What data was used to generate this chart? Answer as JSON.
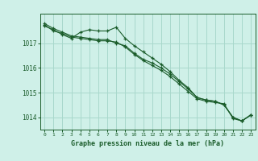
{
  "title": "Graphe pression niveau de la mer (hPa)",
  "bg_color": "#cff0e8",
  "grid_color": "#a8d8cc",
  "line_color": "#1a5c2a",
  "hours": [
    0,
    1,
    2,
    3,
    4,
    5,
    6,
    7,
    8,
    9,
    10,
    11,
    12,
    13,
    14,
    15,
    16,
    17,
    18,
    19,
    20,
    21,
    22,
    23
  ],
  "series1": [
    1017.7,
    1017.55,
    1017.35,
    1017.2,
    1017.45,
    1017.55,
    1017.5,
    1017.5,
    1017.65,
    1017.2,
    1016.9,
    1016.65,
    1016.4,
    1016.15,
    1015.85,
    1015.5,
    1015.2,
    1014.8,
    1014.7,
    1014.65,
    1014.5,
    1014.0,
    1013.85,
    1014.1
  ],
  "series2": [
    1017.75,
    1017.5,
    1017.4,
    1017.25,
    1017.2,
    1017.15,
    1017.1,
    1017.1,
    1017.05,
    1016.85,
    1016.55,
    1016.3,
    1016.1,
    1015.9,
    1015.65,
    1015.35,
    1015.05,
    1014.75,
    1014.65,
    1014.6,
    1014.55,
    1013.95,
    1013.85,
    1014.1
  ],
  "series3": [
    1017.8,
    1017.6,
    1017.45,
    1017.3,
    1017.25,
    1017.2,
    1017.15,
    1017.15,
    1017.0,
    1016.9,
    1016.6,
    1016.35,
    1016.2,
    1016.0,
    1015.75,
    1015.45,
    1015.15,
    1014.8,
    1014.7,
    1014.65,
    1014.5,
    1014.0,
    1013.85,
    1014.1
  ],
  "ylim": [
    1013.5,
    1018.2
  ],
  "yticks": [
    1014,
    1015,
    1016,
    1017
  ],
  "xlim": [
    -0.5,
    23.5
  ],
  "figsize": [
    3.2,
    2.0
  ],
  "dpi": 100
}
